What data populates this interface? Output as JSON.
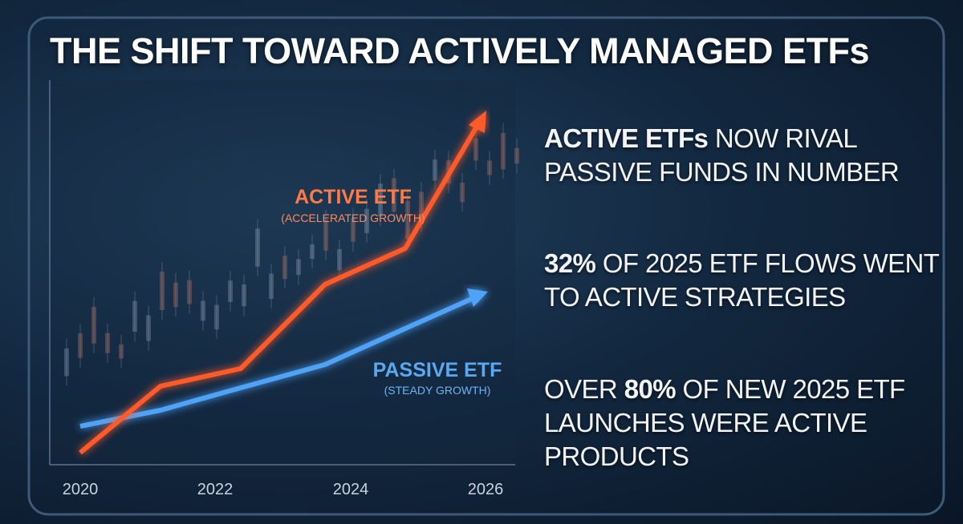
{
  "title": "THE SHIFT TOWARD ACTIVELY MANAGED ETFs",
  "chart": {
    "series_labels": [
      {
        "name": "ACTIVE ETF",
        "note": "(ACCELERATED GROWTH)"
      },
      {
        "name": "PASSIVE ETF",
        "note": "(STEADY GROWTH)"
      }
    ],
    "x_labels": [
      "2020",
      "2022",
      "2024",
      "2026"
    ]
  },
  "points": [
    {
      "strong": "ACTIVE ETFs",
      "after": "NOW RIVAL PASSIVE FUNDS IN NUMBER"
    },
    {
      "strong": "32%",
      "after": "OF 2025 ETF FLOWS WENT TO ACTIVE STRATEGIES"
    },
    {
      "before": "OVER",
      "strong": "80%",
      "after": "OF NEW 2025 ETF LAUNCHES WERE ACTIVE PRODUCTS"
    }
  ]
}
